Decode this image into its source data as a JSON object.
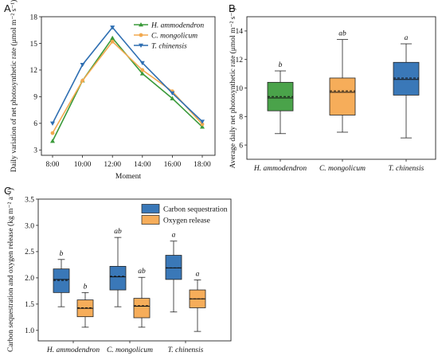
{
  "chart_data": [
    {
      "panel": "A",
      "type": "line",
      "xlabel": "Moment",
      "ylabel": "Daily variation of net photosynthetic rate (μmol m⁻² s⁻¹)",
      "categories": [
        "8:00",
        "10:00",
        "12:00",
        "14:00",
        "16:00",
        "18:00"
      ],
      "yticks": [
        "3",
        "6",
        "9",
        "12",
        "15",
        "18"
      ],
      "ylim": [
        2.4,
        18
      ],
      "legend_position": "top-right",
      "series": [
        {
          "name": "H. ammodendron",
          "color": "#3a9a3a",
          "marker": "triangle-up",
          "values": [
            4.0,
            10.8,
            15.6,
            11.6,
            8.8,
            5.6
          ]
        },
        {
          "name": "C. mongolicum",
          "color": "#f2a94e",
          "marker": "circle",
          "values": [
            4.9,
            10.8,
            15.2,
            12.0,
            9.6,
            5.9
          ]
        },
        {
          "name": "T. chinensis",
          "color": "#2f6fb2",
          "marker": "triangle-down",
          "values": [
            6.0,
            12.6,
            16.8,
            12.8,
            9.4,
            6.2
          ]
        }
      ]
    },
    {
      "panel": "B",
      "type": "box",
      "ylabel": "Average daily net photosynthetic rate (μmol m⁻² s⁻¹)",
      "categories": [
        "H. ammodendron",
        "C. mongolicum",
        "T. chinensis"
      ],
      "yticks": [
        "6",
        "8",
        "10",
        "12",
        "14"
      ],
      "ylim": [
        5,
        15
      ],
      "boxes": [
        {
          "category": "H. ammodendron",
          "color": "#4aa34a",
          "min": 6.8,
          "q1": 8.4,
          "median": 9.3,
          "mean": 9.4,
          "q3": 10.4,
          "max": 11.2,
          "letter": "b"
        },
        {
          "category": "C. mongolicum",
          "color": "#f6ad5a",
          "min": 6.9,
          "q1": 8.1,
          "median": 9.7,
          "mean": 9.8,
          "q3": 10.7,
          "max": 13.4,
          "letter": "ab"
        },
        {
          "category": "T. chinensis",
          "color": "#3a78b8",
          "min": 6.5,
          "q1": 9.5,
          "median": 10.6,
          "mean": 10.7,
          "q3": 11.8,
          "max": 13.1,
          "letter": "a"
        }
      ]
    },
    {
      "panel": "C",
      "type": "box",
      "ylabel": "Carbon sequestration and oxygen release (kg m⁻² a⁻¹)",
      "categories": [
        "H. ammodendron",
        "C. mongolicum",
        "T. chinensis"
      ],
      "yticks": [
        "1.0",
        "1.5",
        "2.0",
        "2.5",
        "3.0",
        "3.5"
      ],
      "ylim": [
        0.8,
        3.5
      ],
      "legend_position": "top-right",
      "series": [
        {
          "name": "Carbon sequestration",
          "color": "#3a78b8",
          "boxes": [
            {
              "category": "H. ammodendron",
              "min": 1.45,
              "q1": 1.72,
              "median": 1.97,
              "mean": 1.95,
              "q3": 2.17,
              "max": 2.35,
              "letter": "b"
            },
            {
              "category": "C. mongolicum",
              "min": 1.45,
              "q1": 1.77,
              "median": 2.02,
              "mean": 2.03,
              "q3": 2.22,
              "max": 2.77,
              "letter": "ab"
            },
            {
              "category": "T. chinensis",
              "min": 1.35,
              "q1": 1.97,
              "median": 2.19,
              "mean": 2.19,
              "q3": 2.43,
              "max": 2.7,
              "letter": "a"
            }
          ]
        },
        {
          "name": "Oxygen release",
          "color": "#f6ad5a",
          "boxes": [
            {
              "category": "H. ammodendron",
              "min": 1.06,
              "q1": 1.26,
              "median": 1.42,
              "mean": 1.43,
              "q3": 1.58,
              "max": 1.72,
              "letter": "b"
            },
            {
              "category": "C. mongolicum",
              "min": 1.06,
              "q1": 1.24,
              "median": 1.46,
              "mean": 1.47,
              "q3": 1.61,
              "max": 2.01,
              "letter": "ab"
            },
            {
              "category": "T. chinensis",
              "min": 0.98,
              "q1": 1.43,
              "median": 1.6,
              "mean": 1.6,
              "q3": 1.77,
              "max": 1.96,
              "letter": "a"
            }
          ]
        }
      ]
    }
  ]
}
